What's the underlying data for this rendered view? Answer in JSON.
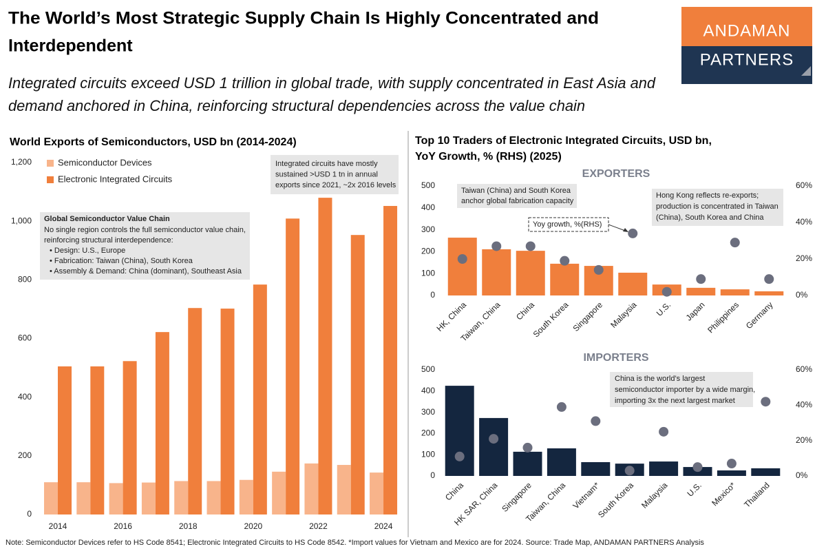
{
  "header": {
    "title": [
      "The World’s Most Strategic Supply Chain Is Highly Concentrated and",
      "Interdependent"
    ],
    "subtitle": [
      "Integrated circuits exceed USD 1 trillion in global trade, with supply concentrated in East Asia and",
      "demand anchored in China, reinforcing structural dependencies across the value chain"
    ],
    "logo": [
      "ANDAMAN",
      "PARTNERS"
    ]
  },
  "chart_data": [
    {
      "type": "bar",
      "title": "World Exports of Semiconductors, USD bn (2014-2024)",
      "categories": [
        "2014",
        null,
        "2016",
        null,
        "2018",
        null,
        "2020",
        null,
        "2022",
        null,
        "2024"
      ],
      "series": [
        {
          "name": "Semiconductor Devices",
          "color": "#f8b48b",
          "values": [
            110,
            110,
            107,
            109,
            114,
            114,
            118,
            146,
            174,
            169,
            143
          ]
        },
        {
          "name": "Electronic Integrated Circuits",
          "color": "#f07f3c",
          "values": [
            505,
            505,
            523,
            622,
            704,
            702,
            784,
            1009,
            1080,
            953,
            1052
          ]
        }
      ],
      "ylim": [
        0,
        1200
      ],
      "yticks": [
        0,
        200,
        400,
        600,
        800,
        {
          "value": 1000,
          "label": "1,000"
        },
        {
          "value": 1200,
          "label": "1,200"
        }
      ],
      "legend": "top-left",
      "annotations": [
        {
          "lines": [
            "Integrated circuits have mostly",
            "sustained >USD 1 tn in annual",
            "exports since 2021, ~2x 2016 levels"
          ]
        },
        {
          "title": "Global Semiconductor Value Chain",
          "lines": [
            "No single region controls the full semiconductor value chain,",
            "reinforcing structural interdependence:",
            "• Design: U.S., Europe",
            "• Fabrication: Taiwan (China), South Korea",
            "• Assembly & Demand: China (dominant), Southeast Asia"
          ]
        }
      ]
    },
    {
      "type": "bar",
      "title": [
        "Top 10 Traders of Electronic Integrated Circuits, USD bn,",
        "YoY Growth, % (RHS) (2025)"
      ],
      "subtitle": "EXPORTERS",
      "categories": [
        "HK, China",
        "Taiwan, China",
        "China",
        "South Korea",
        "Singapore",
        "Malaysia",
        "U.S.",
        "Japan",
        "Philippines",
        "Germany"
      ],
      "series": [
        {
          "color": "#f07f3c",
          "values": [
            264,
            211,
            204,
            145,
            135,
            104,
            50,
            35,
            28,
            19
          ]
        },
        {
          "name": "Yoy growth, %(RHS)",
          "color": "#6b6e7e",
          "marker": "dot",
          "axis": "y2",
          "values": [
            20,
            27,
            27,
            19,
            14,
            34,
            2,
            9,
            29,
            9
          ]
        }
      ],
      "ylim": [
        0,
        500
      ],
      "yticks": [
        0,
        100,
        200,
        300,
        400,
        500
      ],
      "y2lim": [
        0,
        60
      ],
      "y2ticks": [
        {
          "value": 0,
          "label": "0%"
        },
        {
          "value": 20,
          "label": "20%"
        },
        {
          "value": 40,
          "label": "40%"
        },
        {
          "value": 60,
          "label": "60%"
        }
      ],
      "annotations": [
        {
          "lines": [
            "Taiwan (China) and South Korea",
            "anchor global fabrication capacity"
          ]
        },
        {
          "lines": [
            "Hong Kong reflects re-exports;",
            "production is concentrated in Taiwan",
            "(China), South Korea and China"
          ]
        }
      ]
    },
    {
      "type": "bar",
      "subtitle": "IMPORTERS",
      "categories": [
        "China",
        "HK SAR, China",
        "Singapore",
        "Taiwan, China",
        "Vietnam*",
        "South Korea",
        "Malaysia",
        "U.S.",
        "Mexico*",
        "Thailand"
      ],
      "series": [
        {
          "color": "#14263f",
          "values": [
            425,
            273,
            114,
            130,
            65,
            58,
            68,
            42,
            26,
            36
          ]
        },
        {
          "color": "#6b6e7e",
          "marker": "dot",
          "axis": "y2",
          "values": [
            11,
            21,
            16,
            39,
            31,
            3,
            25,
            5,
            7,
            42
          ]
        }
      ],
      "ylim": [
        0,
        500
      ],
      "yticks": [
        0,
        100,
        200,
        300,
        400,
        500
      ],
      "y2lim": [
        0,
        60
      ],
      "y2ticks": [
        {
          "value": 0,
          "label": "0%"
        },
        {
          "value": 20,
          "label": "20%"
        },
        {
          "value": 40,
          "label": "40%"
        },
        {
          "value": 60,
          "label": "60%"
        }
      ],
      "annotations": [
        {
          "lines": [
            "China is the world’s largest",
            "semiconductor importer by a wide margin,",
            "importing 3x the next largest market"
          ]
        }
      ]
    }
  ],
  "footer": {
    "note": "Note: Semiconductor Devices refer to HS Code 8541; Electronic Integrated Circuits to HS Code 8542. *Import values for Vietnam and Mexico are for 2024. Source: Trade Map, ANDAMAN PARTNERS Analysis"
  }
}
